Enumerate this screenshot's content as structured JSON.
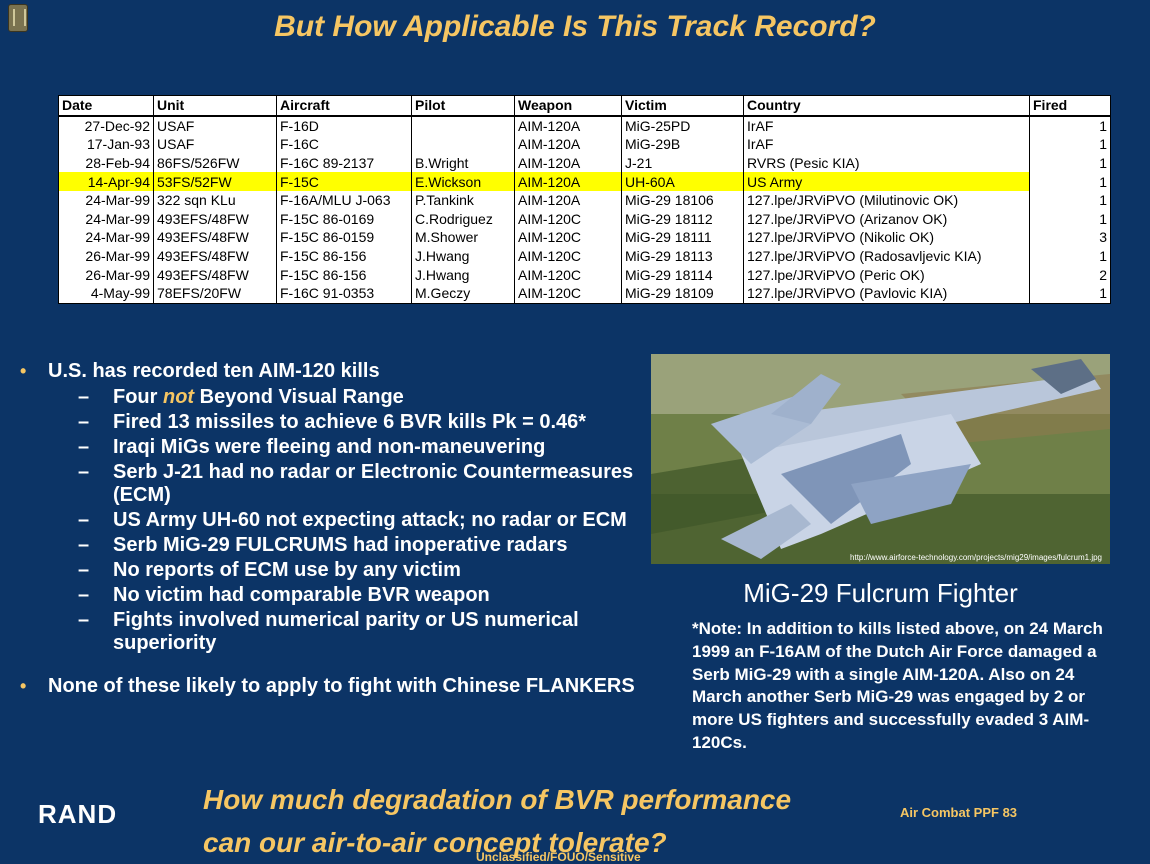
{
  "title": "But How Applicable Is This Track Record?",
  "table": {
    "headers": [
      "Date",
      "Unit",
      "Aircraft",
      "Pilot",
      "Weapon",
      "Victim",
      "Country",
      "Fired"
    ],
    "rows": [
      [
        "27-Dec-92",
        "USAF",
        "F-16D",
        "",
        "AIM-120A",
        "MiG-25PD",
        "IrAF",
        "1"
      ],
      [
        "17-Jan-93",
        "USAF",
        "F-16C",
        "",
        "AIM-120A",
        "MiG-29B",
        "IrAF",
        "1"
      ],
      [
        "28-Feb-94",
        "86FS/526FW",
        "F-16C 89-2137",
        "B.Wright",
        "AIM-120A",
        "J-21",
        "RVRS (Pesic KIA)",
        "1"
      ],
      [
        "14-Apr-94",
        "53FS/52FW",
        "F-15C",
        "E.Wickson",
        "AIM-120A",
        "UH-60A",
        "US Army",
        "1"
      ],
      [
        "24-Mar-99",
        "322 sqn KLu",
        "F-16A/MLU J-063",
        "P.Tankink",
        "AIM-120A",
        "MiG-29 18106",
        "127.lpe/JRViPVO (Milutinovic OK)",
        "1"
      ],
      [
        "24-Mar-99",
        "493EFS/48FW",
        "F-15C 86-0169",
        "C.Rodriguez",
        "AIM-120C",
        "MiG-29 18112",
        "127.lpe/JRViPVO (Arizanov OK)",
        "1"
      ],
      [
        "24-Mar-99",
        "493EFS/48FW",
        "F-15C 86-0159",
        "M.Shower",
        "AIM-120C",
        "MiG-29 18111",
        "127.lpe/JRViPVO (Nikolic OK)",
        "3"
      ],
      [
        "26-Mar-99",
        "493EFS/48FW",
        "F-15C 86-156",
        "J.Hwang",
        "AIM-120C",
        "MiG-29 18113",
        "127.lpe/JRViPVO (Radosavljevic KIA)",
        "1"
      ],
      [
        "26-Mar-99",
        "493EFS/48FW",
        "F-15C 86-156",
        "J.Hwang",
        "AIM-120C",
        "MiG-29 18114",
        "127.lpe/JRViPVO (Peric OK)",
        "2"
      ],
      [
        "4-May-99",
        "78EFS/20FW",
        "F-16C 91-0353",
        "M.Geczy",
        "AIM-120C",
        "MiG-29 18109",
        "127.lpe/JRViPVO (Pavlovic KIA)",
        "1"
      ]
    ],
    "highlight_row": 3,
    "highlight_color": "#ffff00"
  },
  "bullets": {
    "first": "U.S. has recorded ten AIM-120 kills",
    "sub1_pre": "Four ",
    "sub1_em": "not",
    "sub1_post": " Beyond Visual Range",
    "subs": [
      "Fired 13 missiles to achieve 6 BVR kills Pk = 0.46*",
      "Iraqi MiGs were fleeing and non-maneuvering",
      "Serb J-21 had no radar or Electronic Countermeasures (ECM)",
      "US Army UH-60 not expecting attack; no radar or ECM",
      "Serb MiG-29 FULCRUMS had inoperative radars",
      "No reports of ECM use by any victim",
      "No victim had comparable BVR weapon",
      "Fights involved numerical parity or US numerical superiority"
    ],
    "last": "None of these likely to apply to fight with Chinese FLANKERS"
  },
  "photo": {
    "credit": "http://www.airforce-technology.com/projects/mig29/images/fulcrum1.jpg",
    "caption": "MiG-29 Fulcrum Fighter"
  },
  "note": "*Note:  In addition to kills listed above, on 24 March 1999 an F-16AM of the Dutch Air Force damaged a Serb MiG-29 with a single AIM-120A.  Also on 24 March another Serb MiG-29 was engaged by 2 or more US fighters and successfully evaded 3 AIM-120Cs.",
  "footer": {
    "logo": "RAND",
    "question_line1": "How much degradation of BVR performance",
    "question_line2": "can our air-to-air concept tolerate?",
    "code": "Air Combat PPF 83",
    "classification": "Unclassified/FOUO/Sensitive"
  },
  "colors": {
    "background": "#0c3466",
    "accent": "#f6c663",
    "text": "#ffffff"
  }
}
